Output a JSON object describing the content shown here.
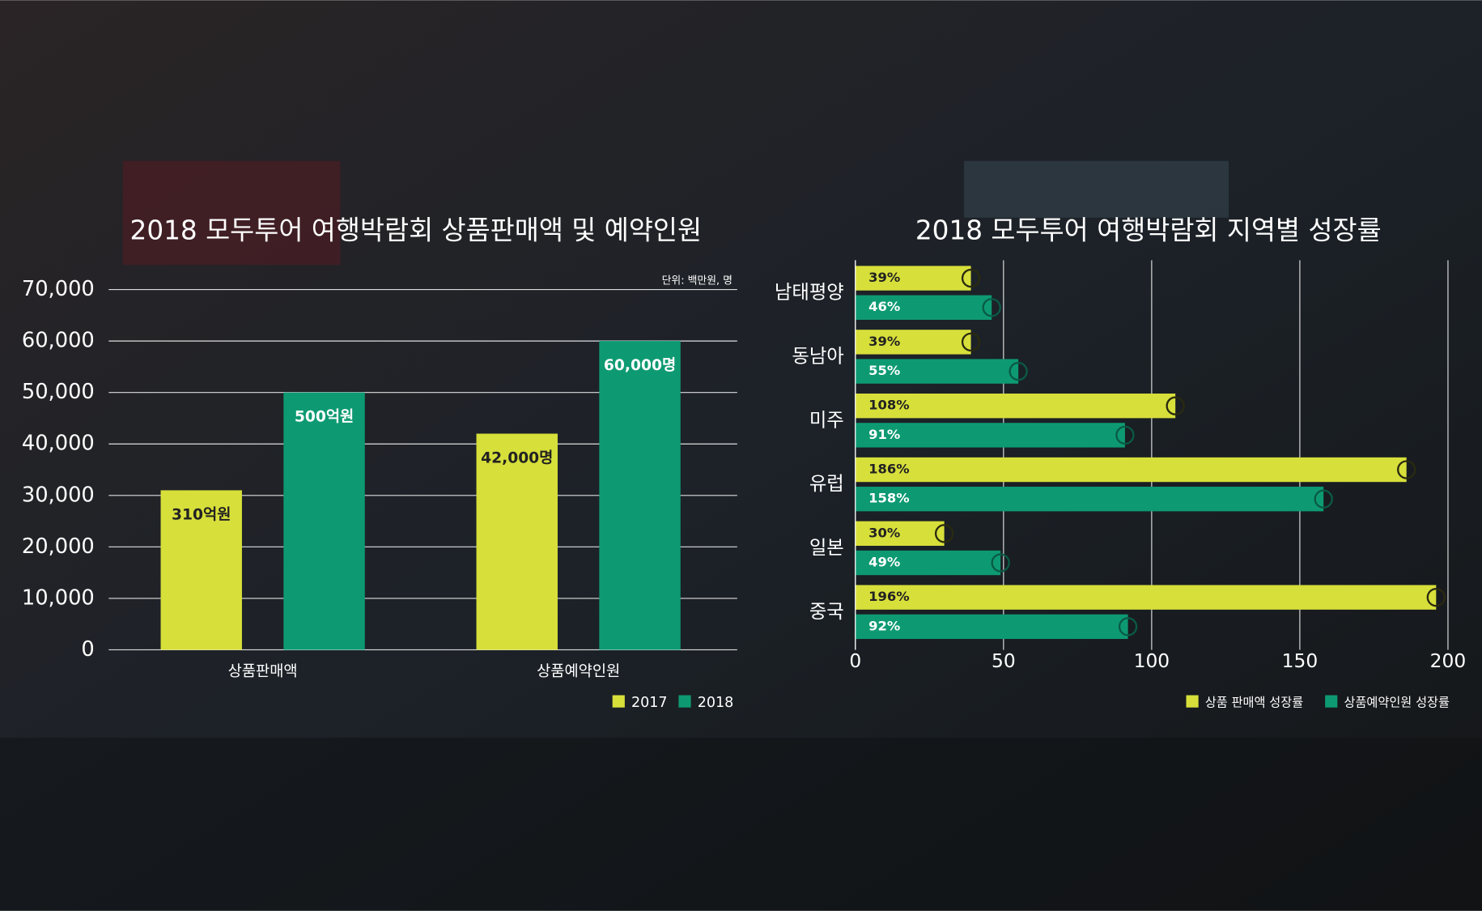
{
  "chart_data": [
    {
      "type": "bar",
      "title": "2018 모두투어 여행박람회 상품판매액 및 예약인원",
      "note": "단위: 백만원, 명",
      "categories": [
        "상품판매액",
        "상품예약인원"
      ],
      "series": [
        {
          "name": "2017",
          "color": "#d7df3a",
          "values": [
            31000,
            42000
          ],
          "value_labels": [
            "310억원",
            "42,000명"
          ]
        },
        {
          "name": "2018",
          "color": "#0d9a72",
          "values": [
            50000,
            60000
          ],
          "value_labels": [
            "500억원",
            "60,000명"
          ]
        }
      ],
      "ylim": [
        0,
        70000
      ],
      "yticks": [
        0,
        {
          "value": 10000,
          "label": "10,000"
        },
        {
          "value": 20000,
          "label": "20,000"
        },
        {
          "value": 30000,
          "label": "30,000"
        },
        {
          "value": 40000,
          "label": "40,000"
        },
        {
          "value": 50000,
          "label": "50,000"
        },
        {
          "value": 60000,
          "label": "60,000"
        },
        {
          "value": 70000,
          "label": "70,000"
        }
      ],
      "grid": true,
      "legend": "bottom-right"
    },
    {
      "type": "barh",
      "title": "2018 모두투어 여행박람회 지역별 성장률",
      "categories": [
        "남태평양",
        "동남아",
        "미주",
        "유럽",
        "일본",
        "중국"
      ],
      "series": [
        {
          "name": "상품 판매액 성장률",
          "color": "#d7df3a",
          "values": [
            39,
            39,
            108,
            186,
            30,
            196
          ],
          "value_labels": [
            "39%",
            "39%",
            "108%",
            "186%",
            "30%",
            "196%"
          ]
        },
        {
          "name": "상품예약인원 성장률",
          "color": "#0d9a72",
          "values": [
            46,
            55,
            91,
            158,
            49,
            92
          ],
          "value_labels": [
            "46%",
            "55%",
            "91%",
            "158%",
            "49%",
            "92%"
          ]
        }
      ],
      "xlim": [
        0,
        200
      ],
      "xticks": [
        0,
        50,
        100,
        150,
        200
      ],
      "grid": true,
      "legend": "bottom-right"
    }
  ]
}
